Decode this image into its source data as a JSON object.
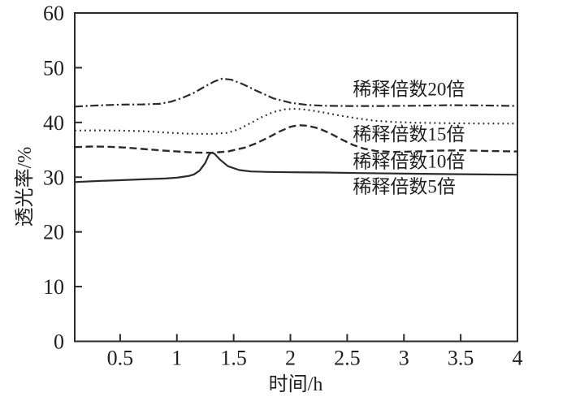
{
  "figure": {
    "background_color": "#ffffff",
    "ink_color": "#2b2b2b",
    "title": ""
  },
  "chart_data": {
    "type": "line",
    "title": "",
    "xlabel": "时间/h",
    "ylabel": "透光率/%",
    "xlim": [
      0.1,
      4
    ],
    "ylim": [
      0,
      60
    ],
    "grid": false,
    "legend_position": "inline-annotations",
    "x_ticks": {
      "values": [
        0.5,
        1,
        1.5,
        2,
        2.5,
        3,
        3.5,
        4
      ],
      "labels": [
        "0.5",
        "1",
        "1.5",
        "2",
        "2.5",
        "3",
        "3.5",
        "4"
      ]
    },
    "y_ticks": {
      "values": [
        0,
        10,
        20,
        30,
        40,
        50,
        60
      ],
      "labels": [
        "0",
        "10",
        "20",
        "30",
        "40",
        "50",
        "60"
      ]
    },
    "series": [
      {
        "name": "稀释倍数5倍",
        "style": "solid",
        "points": [
          [
            0.1,
            29.1
          ],
          [
            0.3,
            29.3
          ],
          [
            0.5,
            29.45
          ],
          [
            0.7,
            29.6
          ],
          [
            0.9,
            29.75
          ],
          [
            1.0,
            29.9
          ],
          [
            1.1,
            30.2
          ],
          [
            1.15,
            30.5
          ],
          [
            1.2,
            31.2
          ],
          [
            1.25,
            32.6
          ],
          [
            1.28,
            34.0
          ],
          [
            1.3,
            34.5
          ],
          [
            1.33,
            34.3
          ],
          [
            1.38,
            33.2
          ],
          [
            1.45,
            32.0
          ],
          [
            1.55,
            31.3
          ],
          [
            1.65,
            31.05
          ],
          [
            1.8,
            30.95
          ],
          [
            2.0,
            30.9
          ],
          [
            2.3,
            30.85
          ],
          [
            2.6,
            30.75
          ],
          [
            3.0,
            30.65
          ],
          [
            3.4,
            30.55
          ],
          [
            3.7,
            30.5
          ],
          [
            4.0,
            30.45
          ]
        ]
      },
      {
        "name": "稀释倍数10倍",
        "style": "dashed",
        "points": [
          [
            0.1,
            35.5
          ],
          [
            0.25,
            35.6
          ],
          [
            0.4,
            35.55
          ],
          [
            0.55,
            35.4
          ],
          [
            0.7,
            35.15
          ],
          [
            0.85,
            34.9
          ],
          [
            1.0,
            34.7
          ],
          [
            1.15,
            34.5
          ],
          [
            1.3,
            34.45
          ],
          [
            1.45,
            34.7
          ],
          [
            1.6,
            35.4
          ],
          [
            1.7,
            36.2
          ],
          [
            1.8,
            37.2
          ],
          [
            1.9,
            38.3
          ],
          [
            2.0,
            39.2
          ],
          [
            2.07,
            39.5
          ],
          [
            2.15,
            39.4
          ],
          [
            2.25,
            38.9
          ],
          [
            2.35,
            38.0
          ],
          [
            2.45,
            36.9
          ],
          [
            2.55,
            35.9
          ],
          [
            2.65,
            35.2
          ],
          [
            2.75,
            34.8
          ],
          [
            2.9,
            34.6
          ],
          [
            3.1,
            34.7
          ],
          [
            3.3,
            34.85
          ],
          [
            3.5,
            34.9
          ],
          [
            3.7,
            34.8
          ],
          [
            4.0,
            34.7
          ]
        ]
      },
      {
        "name": "稀释倍数15倍",
        "style": "dotted",
        "points": [
          [
            0.1,
            38.5
          ],
          [
            0.3,
            38.55
          ],
          [
            0.5,
            38.5
          ],
          [
            0.7,
            38.4
          ],
          [
            0.9,
            38.15
          ],
          [
            1.1,
            37.95
          ],
          [
            1.3,
            37.9
          ],
          [
            1.45,
            38.1
          ],
          [
            1.55,
            38.8
          ],
          [
            1.65,
            39.9
          ],
          [
            1.75,
            41.0
          ],
          [
            1.85,
            41.9
          ],
          [
            1.95,
            42.4
          ],
          [
            2.05,
            42.5
          ],
          [
            2.15,
            42.3
          ],
          [
            2.3,
            41.8
          ],
          [
            2.45,
            41.2
          ],
          [
            2.6,
            40.7
          ],
          [
            2.75,
            40.3
          ],
          [
            2.9,
            40.1
          ],
          [
            3.1,
            39.95
          ],
          [
            3.4,
            39.85
          ],
          [
            3.7,
            39.8
          ],
          [
            4.0,
            39.8
          ]
        ]
      },
      {
        "name": "稀释倍数20倍",
        "style": "dashdot",
        "points": [
          [
            0.1,
            42.9
          ],
          [
            0.3,
            43.1
          ],
          [
            0.5,
            43.25
          ],
          [
            0.7,
            43.3
          ],
          [
            0.85,
            43.4
          ],
          [
            0.95,
            43.8
          ],
          [
            1.05,
            44.5
          ],
          [
            1.15,
            45.4
          ],
          [
            1.25,
            46.6
          ],
          [
            1.33,
            47.5
          ],
          [
            1.4,
            48.0
          ],
          [
            1.48,
            47.8
          ],
          [
            1.58,
            47.0
          ],
          [
            1.7,
            45.8
          ],
          [
            1.85,
            44.4
          ],
          [
            2.0,
            43.6
          ],
          [
            2.15,
            43.2
          ],
          [
            2.3,
            43.05
          ],
          [
            2.5,
            43.0
          ],
          [
            2.8,
            43.0
          ],
          [
            3.1,
            43.05
          ],
          [
            3.4,
            43.15
          ],
          [
            3.7,
            43.1
          ],
          [
            4.0,
            43.0
          ]
        ]
      }
    ],
    "annotations": [
      {
        "text": "稀释倍数20倍",
        "x": 2.55,
        "y": 46.1
      },
      {
        "text": "稀释倍数15倍",
        "x": 2.55,
        "y": 37.9
      },
      {
        "text": "稀释倍数10倍",
        "x": 2.55,
        "y": 32.9
      },
      {
        "text": "稀释倍数5倍",
        "x": 2.55,
        "y": 28.3
      }
    ]
  }
}
